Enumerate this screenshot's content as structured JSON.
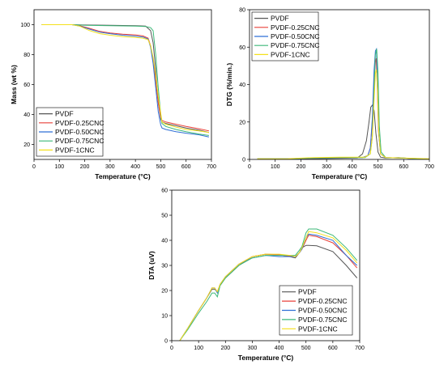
{
  "chart_data": [
    {
      "id": "tga",
      "type": "line",
      "xlabel": "Temperature (°C)",
      "ylabel": "Mass (wt %)",
      "xlim": [
        0,
        700
      ],
      "ylim": [
        10,
        110
      ],
      "xticks": [
        0,
        100,
        200,
        300,
        400,
        500,
        600,
        700
      ],
      "yticks": [
        20,
        40,
        60,
        80,
        100
      ],
      "grid": false,
      "legend": "bottom-left",
      "series": [
        {
          "name": "PVDF",
          "color": "#555555",
          "x": [
            30,
            150,
            200,
            300,
            400,
            440,
            460,
            470,
            480,
            490,
            500,
            505,
            520,
            560,
            600,
            650,
            690
          ],
          "y": [
            100,
            100,
            99.8,
            99.6,
            99.3,
            99.0,
            96,
            88,
            70,
            48,
            37,
            35,
            34,
            32.5,
            31,
            29.5,
            28
          ]
        },
        {
          "name": "PVDF-0.25CNC",
          "color": "#e8413a",
          "x": [
            30,
            150,
            180,
            220,
            260,
            300,
            350,
            400,
            430,
            450,
            460,
            470,
            480,
            490,
            500,
            505,
            520,
            560,
            600,
            650,
            690
          ],
          "y": [
            100,
            100,
            99.3,
            97.5,
            95.5,
            94.5,
            93.7,
            93.2,
            92.5,
            91,
            86,
            76,
            62,
            48,
            38,
            36,
            35,
            33.5,
            32,
            30.5,
            29
          ]
        },
        {
          "name": "PVDF-0.50CNC",
          "color": "#2f6fd6",
          "x": [
            30,
            150,
            180,
            220,
            260,
            300,
            350,
            400,
            430,
            450,
            460,
            470,
            480,
            490,
            500,
            505,
            520,
            560,
            600,
            650,
            690
          ],
          "y": [
            100,
            100,
            99.1,
            97,
            95,
            94,
            93,
            92.4,
            91.8,
            90.5,
            85,
            74,
            58,
            42,
            33,
            31,
            30,
            28.5,
            27.5,
            26.5,
            25
          ]
        },
        {
          "name": "PVDF-0.75CNC",
          "color": "#3cb878",
          "x": [
            30,
            150,
            200,
            300,
            400,
            440,
            460,
            470,
            480,
            490,
            500,
            505,
            520,
            560,
            600,
            650,
            690
          ],
          "y": [
            100,
            100,
            99.6,
            99.3,
            99,
            98.8,
            98,
            96,
            80,
            58,
            40,
            34,
            32,
            30,
            28.5,
            27,
            26
          ]
        },
        {
          "name": "PVDF-1CNC",
          "color": "#f4e01c",
          "x": [
            30,
            150,
            180,
            220,
            260,
            300,
            350,
            400,
            430,
            450,
            460,
            470,
            480,
            490,
            500,
            505,
            520,
            560,
            600,
            650,
            690
          ],
          "y": [
            100,
            100,
            99,
            96,
            94,
            93,
            92,
            91.5,
            91,
            90,
            86,
            78,
            66,
            52,
            41,
            35,
            33.5,
            31.5,
            30,
            29,
            28
          ]
        }
      ]
    },
    {
      "id": "dtg",
      "type": "line",
      "xlabel": "Temperature (°C)",
      "ylabel": "DTG (%/min.)",
      "xlim": [
        0,
        700
      ],
      "ylim": [
        0,
        80
      ],
      "xticks": [
        0,
        100,
        200,
        300,
        400,
        500,
        600,
        700
      ],
      "yticks": [
        0,
        20,
        40,
        60,
        80
      ],
      "grid": false,
      "legend": "top-left",
      "series": [
        {
          "name": "PVDF",
          "color": "#555555",
          "x": [
            30,
            150,
            250,
            350,
            420,
            440,
            455,
            465,
            472,
            478,
            485,
            492,
            500,
            510,
            530,
            580,
            620,
            700
          ],
          "y": [
            0.2,
            0.2,
            0.4,
            0.6,
            0.8,
            3,
            10,
            20,
            28,
            29,
            26,
            14,
            4,
            1.2,
            0.8,
            1,
            0.5,
            0.2
          ]
        },
        {
          "name": "PVDF-0.25CNC",
          "color": "#e8413a",
          "x": [
            30,
            150,
            250,
            350,
            440,
            460,
            470,
            478,
            485,
            490,
            493,
            497,
            502,
            510,
            530,
            600,
            700
          ],
          "y": [
            0.3,
            0.3,
            0.8,
            1,
            1,
            2,
            6,
            20,
            42,
            52,
            54,
            40,
            15,
            3,
            1,
            0.7,
            0.2
          ]
        },
        {
          "name": "PVDF-0.50CNC",
          "color": "#2f6fd6",
          "x": [
            30,
            150,
            250,
            350,
            440,
            460,
            470,
            478,
            485,
            490,
            494,
            498,
            503,
            510,
            530,
            600,
            700
          ],
          "y": [
            0.3,
            0.3,
            0.8,
            1,
            1,
            2,
            6,
            22,
            48,
            58,
            59,
            42,
            14,
            3,
            1,
            0.7,
            0.2
          ]
        },
        {
          "name": "PVDF-0.75CNC",
          "color": "#3cb878",
          "x": [
            30,
            150,
            250,
            350,
            450,
            470,
            478,
            485,
            490,
            495,
            500,
            505,
            512,
            530,
            600,
            700
          ],
          "y": [
            0.3,
            0.3,
            0.8,
            1,
            1,
            3,
            12,
            38,
            56,
            59,
            46,
            18,
            4,
            1,
            0.7,
            0.2
          ]
        },
        {
          "name": "PVDF-1CNC",
          "color": "#f4e01c",
          "x": [
            30,
            150,
            250,
            350,
            450,
            470,
            478,
            485,
            490,
            494,
            498,
            503,
            510,
            530,
            600,
            700
          ],
          "y": [
            0.3,
            0.4,
            1,
            1.2,
            1.2,
            3,
            12,
            32,
            46,
            48,
            38,
            15,
            3,
            1,
            0.8,
            0.3
          ]
        }
      ]
    },
    {
      "id": "dta",
      "type": "line",
      "xlabel": "Temperature (°C)",
      "ylabel": "DTA (uV)",
      "xlim": [
        0,
        700
      ],
      "ylim": [
        0,
        60
      ],
      "xticks": [
        0,
        100,
        200,
        300,
        400,
        500,
        600,
        700
      ],
      "yticks": [
        0,
        10,
        20,
        30,
        40,
        50,
        60
      ],
      "grid": false,
      "legend": "bottom-right",
      "series": [
        {
          "name": "PVDF",
          "color": "#555555",
          "x": [
            30,
            60,
            100,
            130,
            150,
            160,
            170,
            180,
            200,
            250,
            300,
            350,
            400,
            440,
            460,
            475,
            485,
            500,
            510,
            540,
            600,
            650,
            690
          ],
          "y": [
            0,
            5,
            12,
            17,
            20.5,
            20.5,
            19.5,
            22,
            25,
            30,
            33.5,
            34.5,
            34.3,
            33.5,
            33,
            35,
            37,
            38,
            38,
            37.8,
            35.5,
            30,
            25
          ]
        },
        {
          "name": "PVDF-0.25CNC",
          "color": "#e8413a",
          "x": [
            30,
            60,
            100,
            130,
            150,
            160,
            170,
            180,
            200,
            250,
            300,
            350,
            400,
            440,
            460,
            475,
            485,
            500,
            510,
            540,
            600,
            650,
            690
          ],
          "y": [
            0,
            5,
            12,
            17,
            21,
            21,
            19.5,
            22.5,
            25.5,
            30.5,
            33.5,
            34.5,
            34.2,
            33.8,
            33.5,
            35,
            36.5,
            40,
            42,
            41.5,
            39,
            34,
            29
          ]
        },
        {
          "name": "PVDF-0.50CNC",
          "color": "#2f6fd6",
          "x": [
            30,
            60,
            100,
            130,
            150,
            160,
            170,
            180,
            200,
            250,
            300,
            350,
            400,
            440,
            460,
            475,
            485,
            500,
            510,
            540,
            600,
            650,
            690
          ],
          "y": [
            0,
            5,
            12,
            17,
            21,
            21,
            19,
            22.5,
            25.5,
            30.5,
            33,
            34,
            33.5,
            33.5,
            33.5,
            35,
            36.5,
            41,
            42.5,
            42,
            40,
            34,
            30
          ]
        },
        {
          "name": "PVDF-0.75CNC",
          "color": "#3cb878",
          "x": [
            30,
            60,
            100,
            130,
            150,
            160,
            170,
            180,
            200,
            250,
            300,
            350,
            400,
            440,
            460,
            475,
            485,
            500,
            510,
            540,
            600,
            650,
            690
          ],
          "y": [
            0,
            4.5,
            11,
            15.5,
            19,
            19,
            17.5,
            22,
            25,
            30,
            33,
            34,
            34,
            34,
            34,
            36,
            37.5,
            43,
            44.5,
            44.5,
            42,
            37,
            32
          ]
        },
        {
          "name": "PVDF-1CNC",
          "color": "#f4e01c",
          "x": [
            30,
            60,
            100,
            130,
            150,
            160,
            170,
            180,
            200,
            250,
            300,
            350,
            400,
            440,
            460,
            475,
            485,
            500,
            510,
            540,
            600,
            650,
            690
          ],
          "y": [
            0,
            5,
            12,
            17,
            21,
            21,
            19.5,
            22.5,
            25.5,
            30.5,
            33.5,
            34.5,
            34.5,
            34,
            33.5,
            35,
            37,
            41,
            43.5,
            43,
            41,
            36,
            31
          ]
        }
      ]
    }
  ]
}
